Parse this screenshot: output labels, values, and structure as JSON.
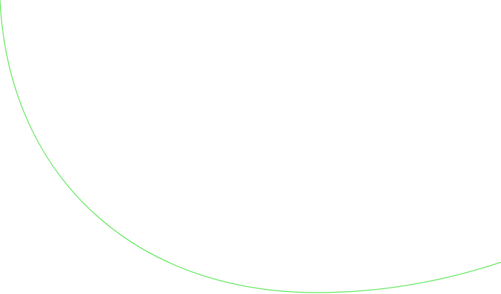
{
  "canvas": {
    "background": "#ffffff",
    "curve_color": "#5fe65a"
  }
}
